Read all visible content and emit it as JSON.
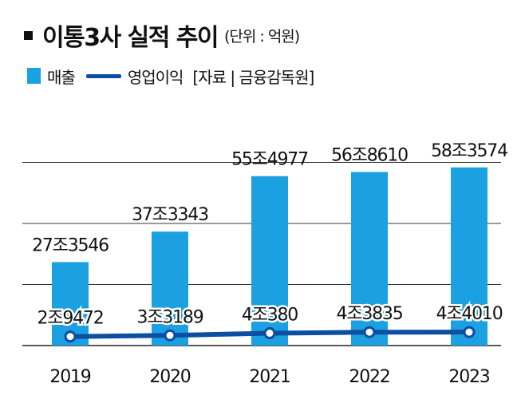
{
  "header": {
    "title": "이통3사 실적 추이",
    "unit": "(단위 : 억원)"
  },
  "legend": {
    "bar_label": "매출",
    "line_label": "영업이익",
    "source": "[자료 | 금융감독원]"
  },
  "colors": {
    "bar": "#1ba1e2",
    "line": "#0c4ea2",
    "grid": "#333333"
  },
  "chart_data": {
    "type": "bar",
    "title": "이통3사 실적 추이",
    "categories": [
      "2019",
      "2020",
      "2021",
      "2022",
      "2023"
    ],
    "ylim": [
      0,
      800000
    ],
    "grid": true,
    "series": [
      {
        "name": "매출",
        "type": "bar",
        "values": [
          273546,
          373343,
          554977,
          568610,
          583574
        ],
        "labels": [
          "27조3546",
          "37조3343",
          "55조4977",
          "56조8610",
          "58조3574"
        ]
      },
      {
        "name": "영업이익",
        "type": "line",
        "values": [
          29472,
          33189,
          40380,
          43835,
          44010
        ],
        "labels": [
          "2조9472",
          "3조3189",
          "4조380",
          "4조3835",
          "4조4010"
        ]
      }
    ]
  }
}
